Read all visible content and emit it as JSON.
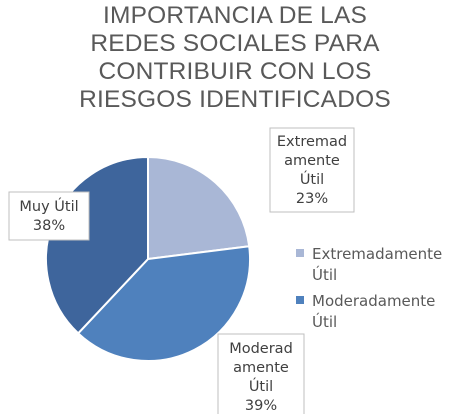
{
  "chart_data": {
    "type": "pie",
    "title_lines": [
      "IMPORTANCIA DE LAS",
      "REDES SOCIALES PARA",
      "CONTRIBUIR CON LOS",
      "RIESGOS IDENTIFICADOS"
    ],
    "slices": [
      {
        "name": "Extremadamente Útil",
        "value": 23,
        "label": "23%",
        "label_lines": [
          "Extremad",
          "amente",
          "Útil"
        ],
        "color": "#A9B7D6"
      },
      {
        "name": "Moderadamente Útil",
        "value": 39,
        "label": "39%",
        "label_lines": [
          "Moderad",
          "amente",
          "Útil"
        ],
        "color": "#4F81BD"
      },
      {
        "name": "Muy Útil",
        "value": 38,
        "label": "38%",
        "label_lines": [
          "Muy Útil"
        ],
        "color": "#3E659C"
      }
    ],
    "legend": {
      "position": "right",
      "entries": [
        {
          "lines": [
            "Extremadamente",
            "Útil"
          ],
          "color": "#A9B7D6"
        },
        {
          "lines": [
            "Moderadamente",
            "Útil"
          ],
          "color": "#4F81BD"
        }
      ]
    }
  }
}
